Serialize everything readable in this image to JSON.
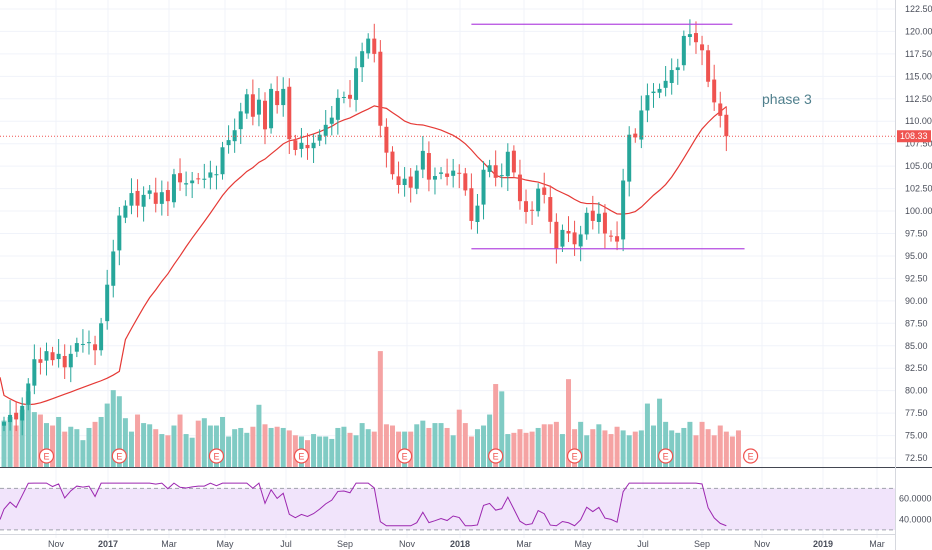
{
  "chart_data": {
    "type": "candlestick",
    "annotation": "phase 3",
    "price_axis": {
      "min": 71.5,
      "max": 123.5,
      "ticks": [
        "122.50",
        "120.00",
        "117.50",
        "115.00",
        "112.50",
        "110.00",
        "107.50",
        "105.00",
        "102.50",
        "100.00",
        "97.50",
        "95.00",
        "92.50",
        "90.00",
        "87.50",
        "85.00",
        "82.50",
        "80.00",
        "77.50",
        "75.00",
        "72.50"
      ],
      "last_price": 108.33,
      "last_price_label": "108.33"
    },
    "indicator_axis": {
      "min": 28,
      "max": 78,
      "ticks": [
        "60.0000",
        "40.0000"
      ],
      "band_upper": 70,
      "band_lower": 30
    },
    "time_labels": [
      "Nov",
      "2017",
      "Mar",
      "May",
      "Jul",
      "Sep",
      "Nov",
      "2018",
      "Mar",
      "May",
      "Jul",
      "Sep",
      "Nov",
      "2019",
      "Mar"
    ],
    "earnings_marker": "E",
    "earnings_bar_index": [
      7,
      19,
      35,
      49,
      66,
      81,
      94,
      109,
      123
    ],
    "resistance_level": 120.8,
    "support_level": 95.8,
    "resistance_bar_range": [
      77,
      120
    ],
    "support_bar_range": [
      77,
      122
    ],
    "colors": {
      "up": "#26a69a",
      "down": "#ef5350",
      "up_volume": "#80cbc4",
      "down_volume": "#f5a3a3",
      "moving_average": "#e53935",
      "levels": "#b44be1",
      "indicator": "#9c27b0",
      "indicator_band": "#f1e4fb",
      "last_price": "#ef5350"
    },
    "closes": [
      76.5,
      77.3,
      76.8,
      78.3,
      80.8,
      83.5,
      83.1,
      84.4,
      83.4,
      84.1,
      82.6,
      84.1,
      85.3,
      85.2,
      85.4,
      84.5,
      87.5,
      91.8,
      95.5,
      99.5,
      100.6,
      102.0,
      100.6,
      101.8,
      102.3,
      100.8,
      102.1,
      101.1,
      104.1,
      103.2,
      103.1,
      103.4,
      103.6,
      103.6,
      104.3,
      104.1,
      107.1,
      107.9,
      109.0,
      111.1,
      113.0,
      110.5,
      112.4,
      109.1,
      113.6,
      111.8,
      113.6,
      108.0,
      106.8,
      107.6,
      107.0,
      107.6,
      108.5,
      109.6,
      110.4,
      112.6,
      112.7,
      112.5,
      115.9,
      117.8,
      119.2,
      117.5,
      109.5,
      106.5,
      104.1,
      102.9,
      103.6,
      102.6,
      104.5,
      106.7,
      103.5,
      103.9,
      104.3,
      103.8,
      104.5,
      104.2,
      102.3,
      98.9,
      100.6,
      104.6,
      105.1,
      103.7,
      104.0,
      106.6,
      104.3,
      101.1,
      99.9,
      100.1,
      102.5,
      101.8,
      98.8,
      95.8,
      97.9,
      97.5,
      96.3,
      97.4,
      99.8,
      98.9,
      99.7,
      97.5,
      97.2,
      96.6,
      103.4,
      108.5,
      108.2,
      111.2,
      112.9,
      113.3,
      113.6,
      114.5,
      115.7,
      116.0,
      119.5,
      119.7,
      118.8,
      117.9,
      114.4,
      112.1,
      110.6,
      108.33
    ],
    "volumes": [
      3.8,
      4.1,
      3.4,
      4.7,
      6.2,
      4.5,
      4.3,
      3.6,
      3.4,
      4.1,
      2.9,
      3.3,
      3.1,
      2.2,
      3.2,
      3.7,
      4.1,
      5.2,
      6.3,
      5.8,
      4.0,
      2.9,
      4.3,
      3.6,
      3.5,
      3.1,
      2.7,
      2.6,
      3.4,
      4.3,
      2.7,
      2.4,
      3.8,
      4.0,
      3.4,
      3.4,
      4.1,
      2.5,
      3.1,
      3.2,
      2.8,
      3.3,
      5.1,
      3.5,
      3.2,
      3.3,
      3.2,
      3.0,
      2.6,
      2.5,
      2.2,
      2.7,
      2.5,
      2.5,
      2.3,
      3.2,
      3.3,
      2.8,
      2.6,
      3.6,
      3.1,
      2.9,
      9.5,
      3.5,
      3.4,
      2.9,
      2.9,
      2.9,
      3.5,
      3.8,
      3.2,
      3.6,
      3.6,
      3.2,
      2.6,
      4.7,
      3.6,
      2.5,
      3.1,
      3.4,
      4.3,
      6.8,
      6.2,
      2.7,
      2.8,
      3.1,
      2.8,
      2.9,
      3.2,
      3.5,
      3.5,
      3.7,
      2.7,
      7.2,
      3.1,
      3.7,
      2.6,
      3.1,
      3.5,
      3.0,
      2.7,
      3.3,
      3.0,
      2.6,
      2.9,
      3.0,
      5.2,
      3.4,
      5.6,
      3.7,
      3.0,
      2.8,
      3.2,
      3.7,
      2.6,
      3.7,
      3.1,
      2.6,
      3.4,
      2.9,
      2.5,
      3.0
    ]
  }
}
